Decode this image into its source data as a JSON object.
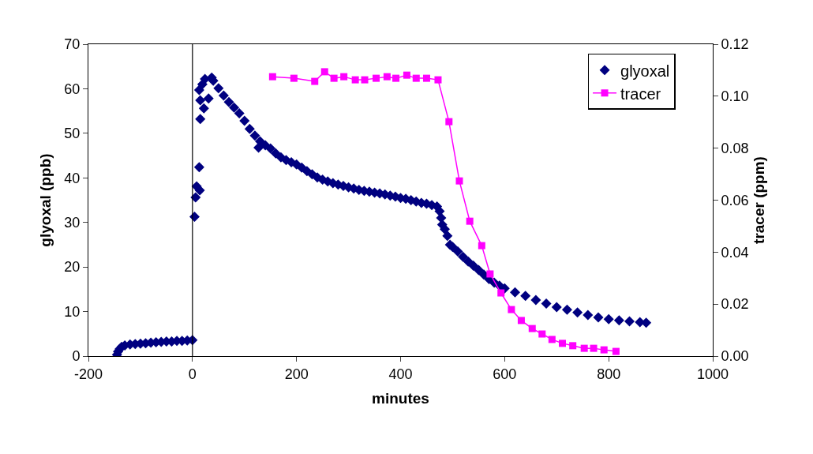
{
  "chart_data": {
    "type": "scatter",
    "xlabel": "minutes",
    "ylabel": "glyoxal (ppb)",
    "y2label": "tracer (ppm)",
    "xlim": [
      -200,
      1000
    ],
    "xticks": [
      -200,
      0,
      200,
      400,
      600,
      800,
      1000
    ],
    "ylim": [
      0,
      70
    ],
    "yticks": [
      0,
      10,
      20,
      30,
      40,
      50,
      60,
      70
    ],
    "y2lim": [
      0,
      0.12
    ],
    "y2ticks": [
      {
        "value": 0,
        "label": "0.00"
      },
      {
        "value": 0.02,
        "label": "0.02"
      },
      {
        "value": 0.04,
        "label": "0.04"
      },
      {
        "value": 0.06,
        "label": "0.06"
      },
      {
        "value": 0.08,
        "label": "0.08"
      },
      {
        "value": 0.1,
        "label": "0.10"
      },
      {
        "value": 0.12,
        "label": "0.12"
      }
    ],
    "grid": false,
    "legend": "top right",
    "ref_lines": [
      {
        "axis": "x",
        "value": 0,
        "color": "#000000"
      }
    ],
    "series": [
      {
        "name": "glyoxal",
        "type": "scatter",
        "marker": "diamond",
        "color": "#000080",
        "x": [
          -145,
          -143,
          -140,
          -136,
          -130,
          -120,
          -110,
          -100,
          -90,
          -80,
          -70,
          -60,
          -50,
          -40,
          -30,
          -20,
          -10,
          0,
          4,
          6,
          8,
          13,
          14,
          15,
          15,
          13,
          19,
          22,
          24,
          31,
          37,
          40,
          50,
          60,
          70,
          80,
          90,
          100,
          110,
          120,
          127,
          130,
          140,
          150,
          160,
          170,
          180,
          190,
          200,
          210,
          220,
          230,
          240,
          250,
          260,
          270,
          280,
          290,
          300,
          310,
          320,
          330,
          340,
          350,
          360,
          370,
          380,
          390,
          400,
          410,
          420,
          430,
          440,
          450,
          460,
          470,
          475,
          478,
          480,
          485,
          490,
          495,
          500,
          510,
          520,
          530,
          540,
          550,
          560,
          570,
          580,
          590,
          600,
          620,
          640,
          660,
          680,
          700,
          720,
          740,
          760,
          780,
          800,
          820,
          840,
          860,
          872
        ],
        "values": [
          0.3,
          1,
          1.6,
          2.1,
          2.4,
          2.6,
          2.7,
          2.8,
          2.9,
          3,
          3.1,
          3.2,
          3.3,
          3.3,
          3.4,
          3.4,
          3.5,
          3.6,
          31.3,
          35.6,
          38.1,
          42.4,
          37.2,
          53.2,
          57.4,
          59.7,
          61,
          55.6,
          62.2,
          57.8,
          62.5,
          61.8,
          60.1,
          58.5,
          57,
          55.8,
          54.5,
          52.8,
          51,
          49.5,
          46.8,
          48.2,
          47.3,
          46.6,
          45.5,
          44.6,
          44,
          43.5,
          43,
          42.3,
          41.5,
          40.8,
          40.1,
          39.6,
          39.2,
          38.8,
          38.5,
          38.2,
          37.9,
          37.6,
          37.3,
          37.1,
          36.9,
          36.7,
          36.5,
          36.3,
          36,
          35.8,
          35.5,
          35.3,
          35,
          34.7,
          34.4,
          34.2,
          33.9,
          33.6,
          32.5,
          31,
          29.5,
          28.5,
          27,
          25,
          24.5,
          23.5,
          22.3,
          21.2,
          20.3,
          19.3,
          18.3,
          17.3,
          16.5,
          15.8,
          15.2,
          14.3,
          13.5,
          12.6,
          11.8,
          11,
          10.4,
          9.8,
          9.2,
          8.7,
          8.3,
          8,
          7.8,
          7.6,
          7.5
        ]
      },
      {
        "name": "tracer",
        "type": "line",
        "marker": "square",
        "line_style": "solid",
        "axis": "y2",
        "color": "#ff00ff",
        "x": [
          154,
          195,
          235,
          254,
          272,
          291,
          313,
          331,
          353,
          374,
          391,
          412,
          430,
          450,
          472,
          493,
          513,
          533,
          556,
          572,
          593,
          613,
          632,
          653,
          672,
          691,
          711,
          731,
          753,
          771,
          791,
          814
        ],
        "values": [
          0.1075,
          0.1069,
          0.1057,
          0.1094,
          0.1069,
          0.1075,
          0.1063,
          0.1063,
          0.1069,
          0.1075,
          0.1069,
          0.1081,
          0.1069,
          0.1069,
          0.1063,
          0.0902,
          0.0674,
          0.0519,
          0.0425,
          0.0316,
          0.0243,
          0.0179,
          0.0137,
          0.0106,
          0.0085,
          0.0064,
          0.0049,
          0.004,
          0.003,
          0.003,
          0.0024,
          0.0018
        ]
      }
    ]
  }
}
